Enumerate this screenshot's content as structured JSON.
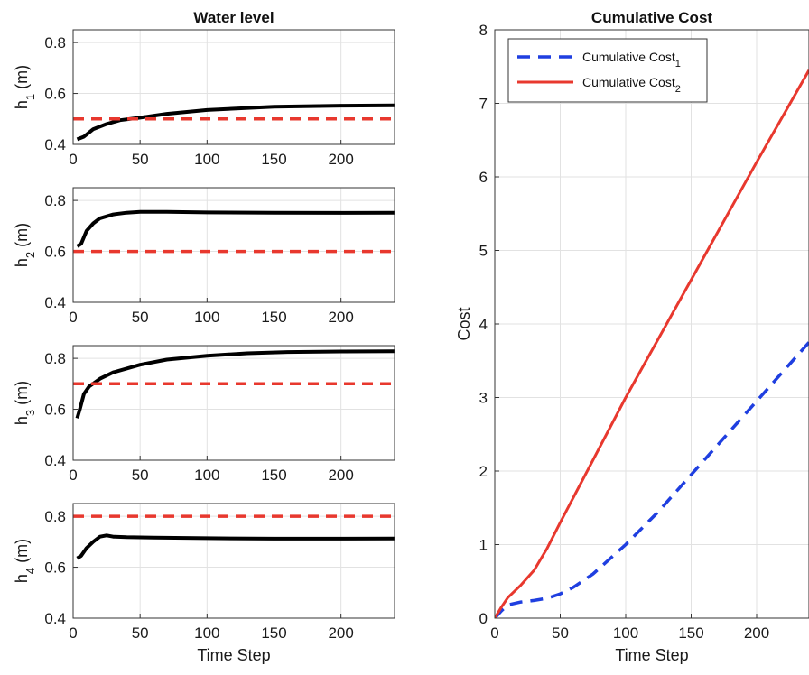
{
  "figure": {
    "left_title": "Water level",
    "colors": {
      "actual": "#000000",
      "reference": "#e8382e",
      "cost1": "#1f3fe0",
      "cost2": "#e8382e",
      "grid": "#e2e2e2"
    }
  },
  "chart_data": [
    {
      "type": "line",
      "title": "Water level",
      "ylabel_main": "h",
      "ylabel_sub": "1",
      "ylabel_unit": " (m)",
      "xlabel": "",
      "xlim": [
        0,
        240
      ],
      "ylim": [
        0.4,
        0.85
      ],
      "xticks": [
        "0",
        "50",
        "100",
        "150",
        "200"
      ],
      "yticks": [
        "0.4",
        "0.6",
        "0.8"
      ],
      "grid": true,
      "series": [
        {
          "role": "actual",
          "x": [
            3,
            8,
            15,
            25,
            35,
            50,
            70,
            100,
            150,
            200,
            240
          ],
          "values": [
            0.42,
            0.43,
            0.46,
            0.48,
            0.495,
            0.505,
            0.52,
            0.535,
            0.548,
            0.552,
            0.553
          ]
        },
        {
          "role": "reference",
          "x": [
            0,
            240
          ],
          "values": [
            0.5,
            0.5
          ]
        }
      ]
    },
    {
      "type": "line",
      "ylabel_main": "h",
      "ylabel_sub": "2",
      "ylabel_unit": " (m)",
      "xlabel": "",
      "xlim": [
        0,
        240
      ],
      "ylim": [
        0.4,
        0.85
      ],
      "xticks": [
        "0",
        "50",
        "100",
        "150",
        "200"
      ],
      "yticks": [
        "0.4",
        "0.6",
        "0.8"
      ],
      "grid": true,
      "series": [
        {
          "role": "actual",
          "x": [
            3,
            6,
            10,
            15,
            20,
            30,
            40,
            50,
            70,
            100,
            150,
            200,
            240
          ],
          "values": [
            0.62,
            0.63,
            0.68,
            0.71,
            0.73,
            0.745,
            0.752,
            0.755,
            0.755,
            0.753,
            0.752,
            0.751,
            0.752
          ]
        },
        {
          "role": "reference",
          "x": [
            0,
            240
          ],
          "values": [
            0.6,
            0.6
          ]
        }
      ]
    },
    {
      "type": "line",
      "ylabel_main": "h",
      "ylabel_sub": "3",
      "ylabel_unit": " (m)",
      "xlabel": "",
      "xlim": [
        0,
        240
      ],
      "ylim": [
        0.4,
        0.85
      ],
      "xticks": [
        "0",
        "50",
        "100",
        "150",
        "200"
      ],
      "yticks": [
        "0.4",
        "0.6",
        "0.8"
      ],
      "grid": true,
      "series": [
        {
          "role": "actual",
          "x": [
            3,
            5,
            8,
            12,
            20,
            30,
            50,
            70,
            100,
            130,
            160,
            200,
            240
          ],
          "values": [
            0.565,
            0.6,
            0.66,
            0.69,
            0.72,
            0.745,
            0.775,
            0.795,
            0.81,
            0.82,
            0.825,
            0.827,
            0.828
          ]
        },
        {
          "role": "reference",
          "x": [
            0,
            240
          ],
          "values": [
            0.7,
            0.7
          ]
        }
      ]
    },
    {
      "type": "line",
      "ylabel_main": "h",
      "ylabel_sub": "4",
      "ylabel_unit": " (m)",
      "xlabel": "Time Step",
      "xlim": [
        0,
        240
      ],
      "ylim": [
        0.4,
        0.85
      ],
      "xticks": [
        "0",
        "50",
        "100",
        "150",
        "200"
      ],
      "yticks": [
        "0.4",
        "0.6",
        "0.8"
      ],
      "grid": true,
      "series": [
        {
          "role": "actual",
          "x": [
            3,
            6,
            10,
            15,
            20,
            25,
            30,
            40,
            60,
            100,
            150,
            200,
            240
          ],
          "values": [
            0.635,
            0.645,
            0.675,
            0.7,
            0.72,
            0.725,
            0.72,
            0.718,
            0.716,
            0.714,
            0.712,
            0.712,
            0.713
          ]
        },
        {
          "role": "reference",
          "x": [
            0,
            240
          ],
          "values": [
            0.8,
            0.8
          ]
        }
      ]
    },
    {
      "type": "line",
      "title": "Cumulative Cost",
      "xlabel": "Time Step",
      "ylabel": "Cost",
      "xlim": [
        0,
        240
      ],
      "ylim": [
        0,
        8
      ],
      "xticks": [
        "0",
        "50",
        "100",
        "150",
        "200"
      ],
      "yticks": [
        "0",
        "1",
        "2",
        "3",
        "4",
        "5",
        "6",
        "7",
        "8"
      ],
      "grid": true,
      "legend": "top-left",
      "series": [
        {
          "name": "Cumulative Cost",
          "name_sub": "1",
          "role": "cost1",
          "style": "dashed",
          "x": [
            0,
            5,
            10,
            20,
            30,
            40,
            50,
            60,
            75,
            100,
            125,
            150,
            175,
            200,
            225,
            240
          ],
          "values": [
            0,
            0.1,
            0.18,
            0.22,
            0.24,
            0.27,
            0.33,
            0.42,
            0.6,
            1.0,
            1.45,
            1.95,
            2.45,
            2.95,
            3.45,
            3.75
          ]
        },
        {
          "name": "Cumulative Cost",
          "name_sub": "2",
          "role": "cost2",
          "style": "solid",
          "x": [
            0,
            5,
            10,
            20,
            30,
            40,
            50,
            75,
            100,
            150,
            200,
            240
          ],
          "values": [
            0,
            0.15,
            0.28,
            0.45,
            0.65,
            0.95,
            1.3,
            2.15,
            3.0,
            4.6,
            6.2,
            7.45
          ]
        }
      ]
    }
  ]
}
